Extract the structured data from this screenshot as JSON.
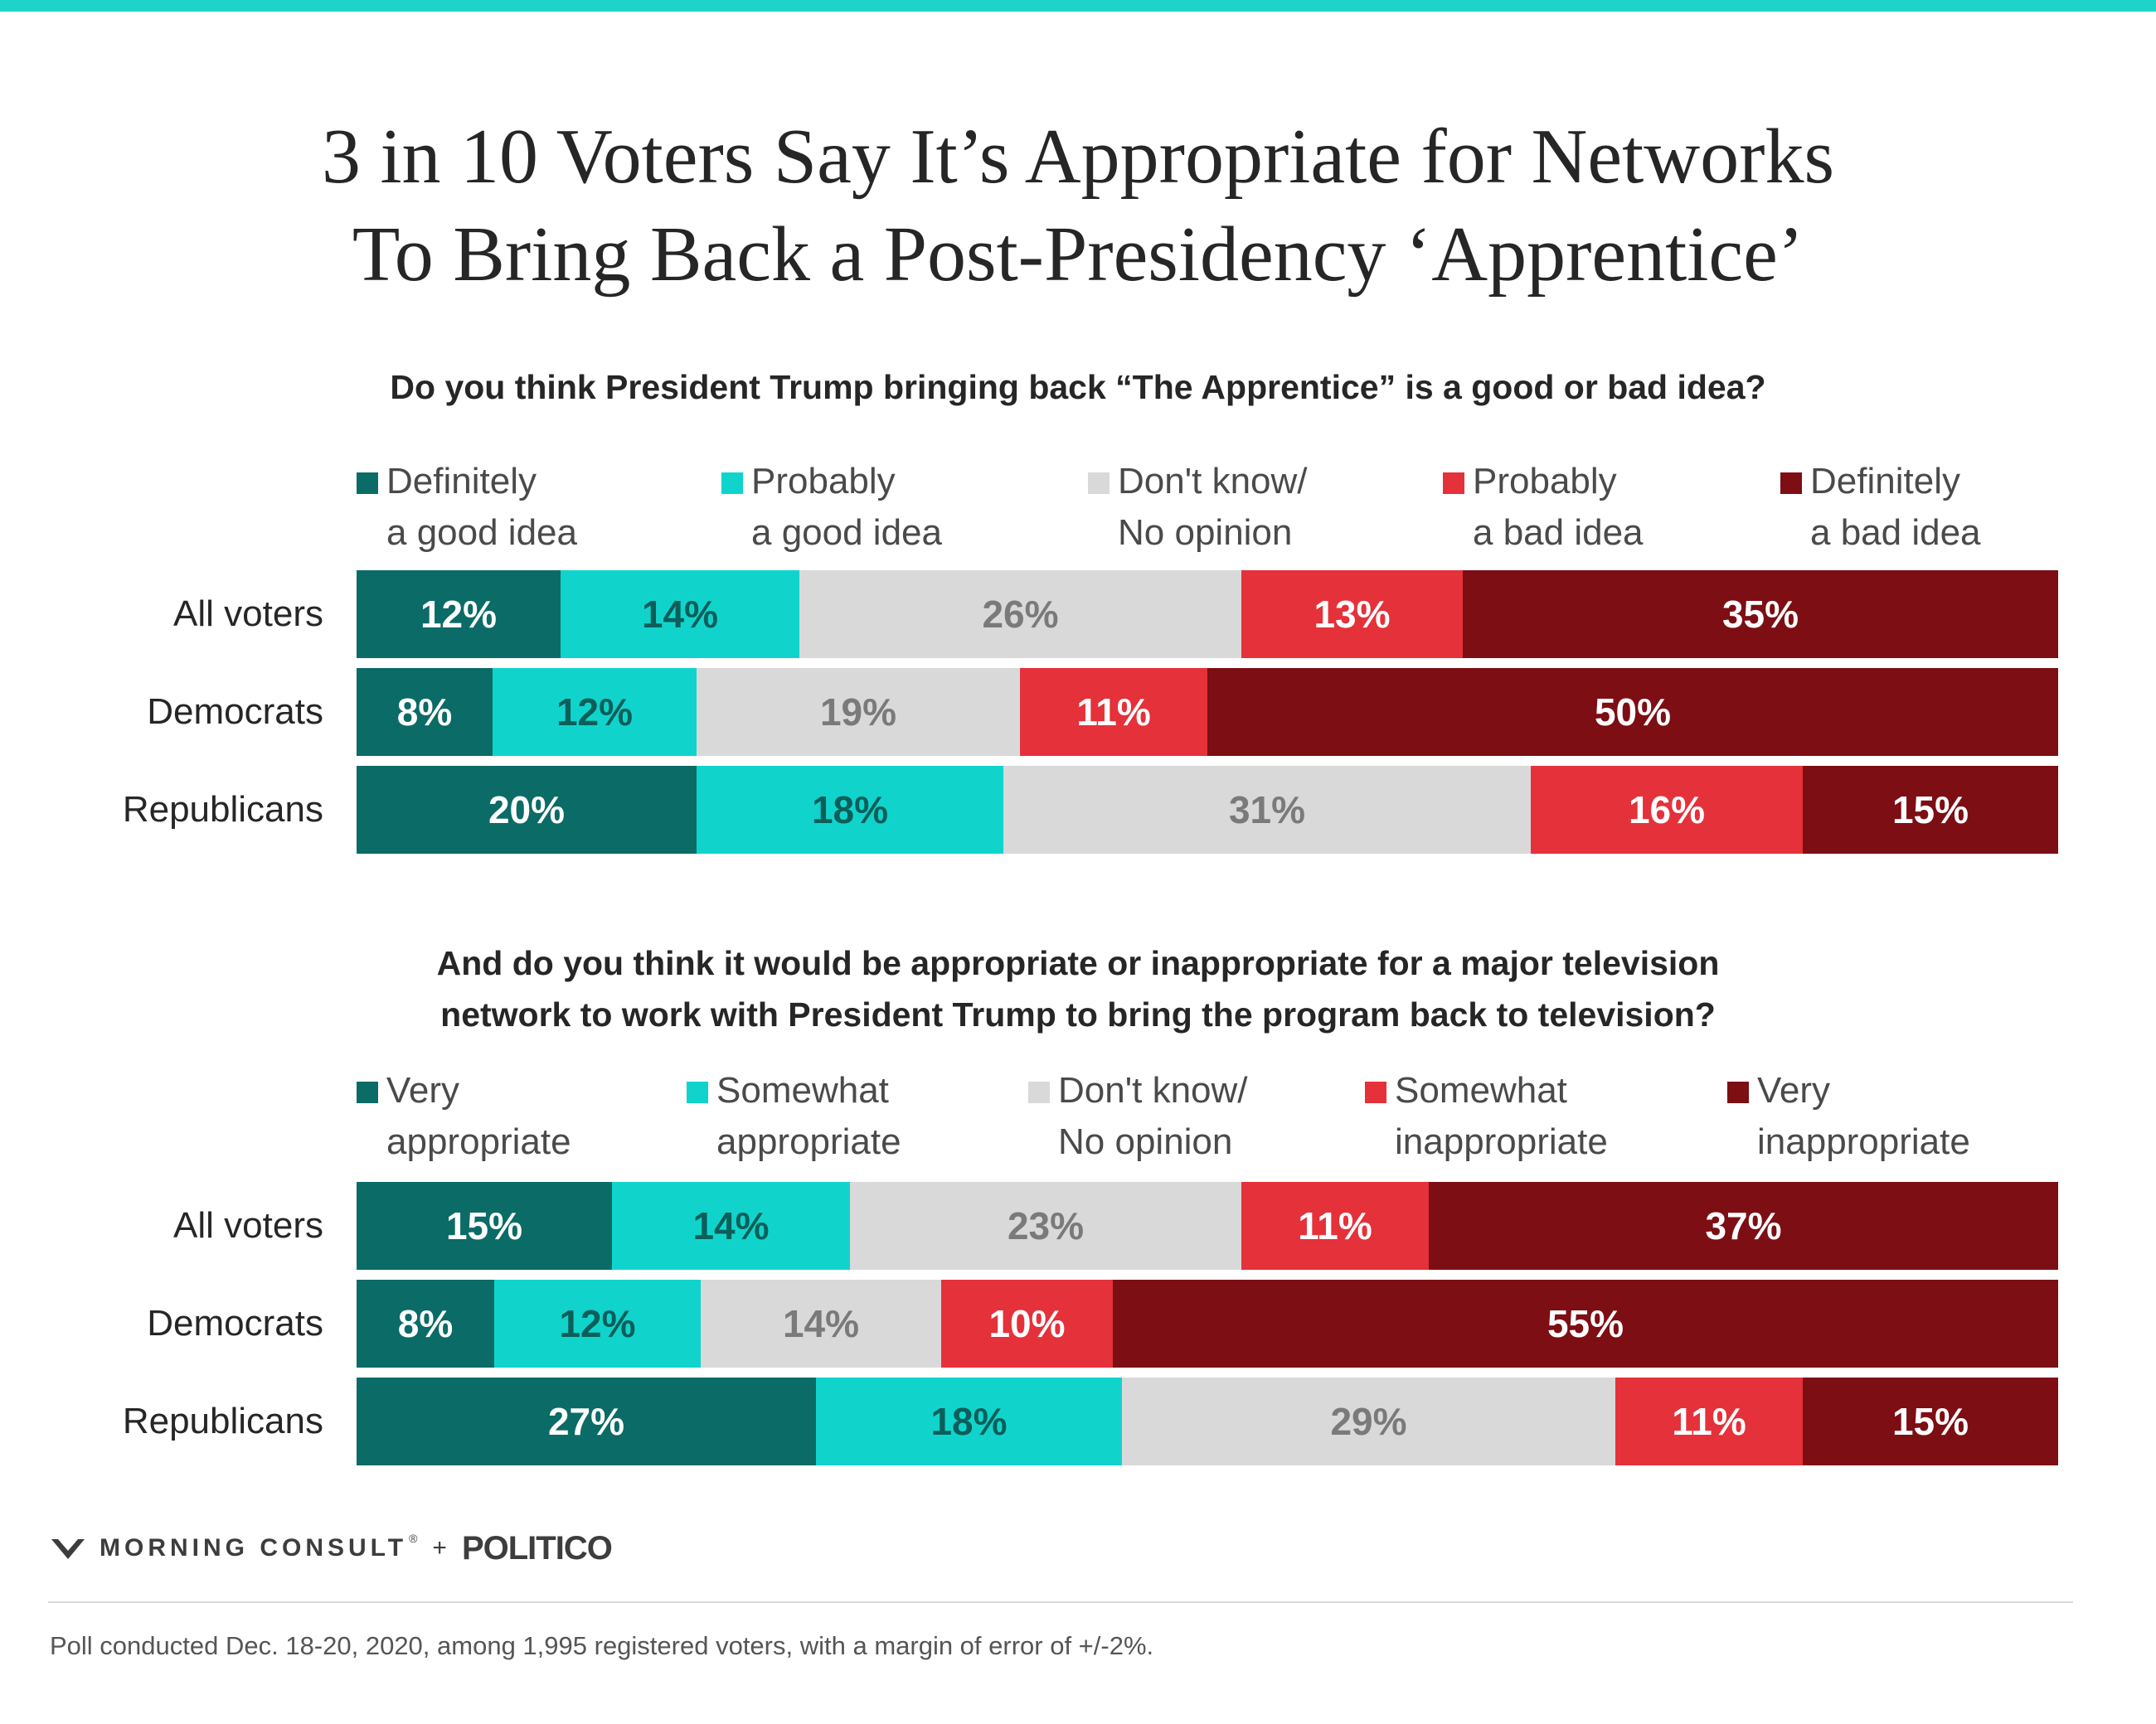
{
  "header": {
    "title_lines": [
      "3 in 10 Voters Say It’s Appropriate for Networks",
      "To Bring Back a Post-Presidency ‘Apprentice’"
    ],
    "accent_color": "#1ed3c8"
  },
  "chart_data": [
    {
      "type": "bar",
      "orientation": "horizontal",
      "stacked": true,
      "question_lines": [
        "Do you think President Trump bringing back “The Apprentice” is a good or bad idea?"
      ],
      "categories": [
        "All voters",
        "Democrats",
        "Republicans"
      ],
      "series": [
        {
          "name": [
            "Definitely",
            "a good idea"
          ],
          "color": "#0b6b66",
          "label_color": "#ffffff",
          "values": [
            12,
            8,
            20
          ],
          "labels": [
            "12%",
            "8%",
            "20%"
          ]
        },
        {
          "name": [
            "Probably",
            "a good idea"
          ],
          "color": "#10d4cc",
          "label_color": "#0b5e5a",
          "values": [
            14,
            12,
            18
          ],
          "labels": [
            "14%",
            "12%",
            "18%"
          ]
        },
        {
          "name": [
            "Don't know/",
            "No opinion"
          ],
          "color": "#d9d9d9",
          "label_color": "#7a7a7a",
          "values": [
            26,
            19,
            31
          ],
          "labels": [
            "26%",
            "19%",
            "31%"
          ]
        },
        {
          "name": [
            "Probably",
            "a bad idea"
          ],
          "color": "#e5313a",
          "label_color": "#ffffff",
          "values": [
            13,
            11,
            16
          ],
          "labels": [
            "13%",
            "11%",
            "16%"
          ]
        },
        {
          "name": [
            "Definitely",
            "a bad idea"
          ],
          "color": "#7d0e13",
          "label_color": "#ffffff",
          "values": [
            35,
            50,
            15
          ],
          "labels": [
            "35%",
            "50%",
            "15%"
          ]
        }
      ],
      "xlim": [
        0,
        100
      ],
      "legend": "top"
    },
    {
      "type": "bar",
      "orientation": "horizontal",
      "stacked": true,
      "question_lines": [
        "And do you think it would be appropriate or inappropriate for a major television",
        "network to work with President Trump to bring the program back to television?"
      ],
      "categories": [
        "All voters",
        "Democrats",
        "Republicans"
      ],
      "series": [
        {
          "name": [
            "Very",
            "appropriate"
          ],
          "color": "#0b6b66",
          "label_color": "#ffffff",
          "values": [
            15,
            8,
            27
          ],
          "labels": [
            "15%",
            "8%",
            "27%"
          ]
        },
        {
          "name": [
            "Somewhat",
            "appropriate"
          ],
          "color": "#10d4cc",
          "label_color": "#0b5e5a",
          "values": [
            14,
            12,
            18
          ],
          "labels": [
            "14%",
            "12%",
            "18%"
          ]
        },
        {
          "name": [
            "Don't know/",
            "No opinion"
          ],
          "color": "#d9d9d9",
          "label_color": "#7a7a7a",
          "values": [
            23,
            14,
            29
          ],
          "labels": [
            "23%",
            "14%",
            "29%"
          ]
        },
        {
          "name": [
            "Somewhat",
            "inappropriate"
          ],
          "color": "#e5313a",
          "label_color": "#ffffff",
          "values": [
            11,
            10,
            11
          ],
          "labels": [
            "11%",
            "10%",
            "11%"
          ]
        },
        {
          "name": [
            "Very",
            "inappropriate"
          ],
          "color": "#7d0e13",
          "label_color": "#ffffff",
          "values": [
            37,
            55,
            15
          ],
          "labels": [
            "37%",
            "55%",
            "15%"
          ]
        }
      ],
      "xlim": [
        0,
        100
      ],
      "legend": "top"
    }
  ],
  "footer": {
    "brand": {
      "morning_consult": "MORNING CONSULT",
      "tm": "®",
      "plus": "+",
      "politico": "POLITICO"
    },
    "note": "Poll conducted Dec. 18-20, 2020, among 1,995 registered voters, with a margin of error of +/-2%."
  }
}
